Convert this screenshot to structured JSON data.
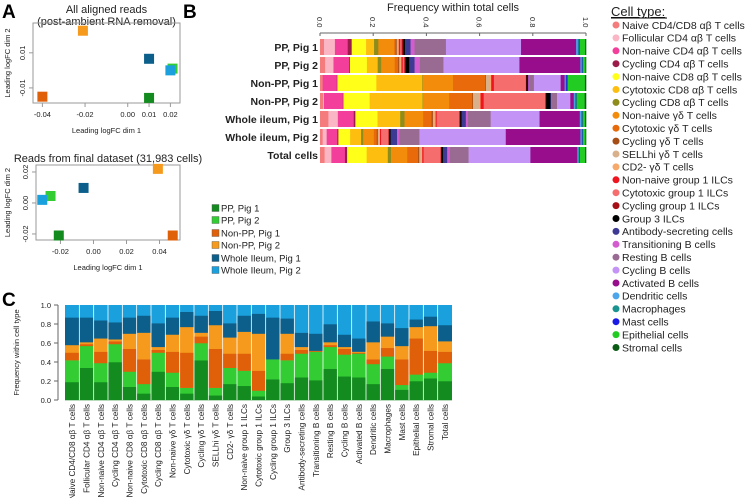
{
  "panel_labels": [
    "A",
    "B",
    "C"
  ],
  "samples": [
    {
      "name": "PP, Pig 1",
      "color": "#138b1e"
    },
    {
      "name": "PP, Pig 2",
      "color": "#33cc33"
    },
    {
      "name": "Non-PP, Pig 1",
      "color": "#e0600a"
    },
    {
      "name": "Non-PP, Pig 2",
      "color": "#f59a1d"
    },
    {
      "name": "Whole Ileum, Pig 1",
      "color": "#0b5f8a"
    },
    {
      "name": "Whole Ileum, Pig 2",
      "color": "#1aa0dc"
    }
  ],
  "cell_type_legend": {
    "title": "Cell type:",
    "items": [
      {
        "name": "Naive CD4/CD8 αβ T cells",
        "color": "#f47c7c"
      },
      {
        "name": "Follicular CD4 αβ T cells",
        "color": "#fbb6c5"
      },
      {
        "name": "Non-naive CD4 αβ T cells",
        "color": "#f33f9b"
      },
      {
        "name": "Cycling CD4 αβ T cells",
        "color": "#9b1b4a"
      },
      {
        "name": "Non-naive CD8 αβ T cells",
        "color": "#ffff1a"
      },
      {
        "name": "Cytotoxic CD8 αβ T cells",
        "color": "#fdbe10"
      },
      {
        "name": "Cycling CD8 αβ T cells",
        "color": "#8e8c1a"
      },
      {
        "name": "Non-naive γδ T cells",
        "color": "#f28c0a"
      },
      {
        "name": "Cytotoxic γδ T cells",
        "color": "#e86a0a"
      },
      {
        "name": "Cycling γδ T cells",
        "color": "#a64d16"
      },
      {
        "name": "SELLhi γδ T cells",
        "color": "#d9b08c"
      },
      {
        "name": "CD2- γδ T cells",
        "color": "#f6a96a"
      },
      {
        "name": "Non-naive group 1 ILCs",
        "color": "#f0141e"
      },
      {
        "name": "Cytotoxic group 1 ILCs",
        "color": "#f56d6d"
      },
      {
        "name": "Cycling group 1 ILCs",
        "color": "#a50f15"
      },
      {
        "name": "Group 3 ILCs",
        "color": "#000000"
      },
      {
        "name": "Antibody-secreting cells",
        "color": "#3d3a94"
      },
      {
        "name": "Transitioning B cells",
        "color": "#d35ccf"
      },
      {
        "name": "Resting B cells",
        "color": "#9a6b92"
      },
      {
        "name": "Cycling B cells",
        "color": "#c394f5"
      },
      {
        "name": "Activated B cells",
        "color": "#970d8b"
      },
      {
        "name": "Dendritic cells",
        "color": "#4ea6ea"
      },
      {
        "name": "Macrophages",
        "color": "#1a9490"
      },
      {
        "name": "Mast cells",
        "color": "#1a1ae6"
      },
      {
        "name": "Epithelial cells",
        "color": "#22cc22"
      },
      {
        "name": "Stromal cells",
        "color": "#0a5c14"
      }
    ]
  },
  "chart_data": [
    {
      "type": "scatter",
      "title": "All aligned reads\n(post-ambient RNA removal)",
      "xlabel": "Leading logFC dim 1",
      "ylabel": "Leading logFC dim 2",
      "xticks": [
        -0.04,
        -0.02,
        0.0,
        0.01,
        0.02
      ],
      "xtick_labels": [
        "-0.04",
        "-0.02",
        "0.00",
        "0.01",
        "0.02"
      ],
      "yticks": [
        0.01,
        -0.01
      ],
      "ytick_labels": [
        "0.01",
        "-0.01"
      ],
      "xlim": [
        -0.0444,
        0.0245
      ],
      "ylim": [
        -0.0186,
        0.027
      ],
      "points": [
        {
          "sample": "PP, Pig 1",
          "x": 0.01,
          "y": -0.0157
        },
        {
          "sample": "PP, Pig 2",
          "x": 0.021,
          "y": 0.001
        },
        {
          "sample": "Non-PP, Pig 1",
          "x": -0.04,
          "y": -0.015
        },
        {
          "sample": "Non-PP, Pig 2",
          "x": -0.021,
          "y": 0.0226
        },
        {
          "sample": "Whole Ileum, Pig 1",
          "x": 0.01,
          "y": 0.0066
        },
        {
          "sample": "Whole Ileum, Pig 2",
          "x": 0.02,
          "y": 0.0
        }
      ]
    },
    {
      "type": "scatter",
      "title": "Reads from final dataset (31,983 cells)",
      "xlabel": "Leading logFC dim 1",
      "ylabel": "Leading logFC dim 2",
      "xticks": [
        -0.02,
        0.0,
        0.02,
        0.04
      ],
      "xtick_labels": [
        "-0.02",
        "0.00",
        "0.02",
        "0.04"
      ],
      "yticks": [
        0.02,
        0.0,
        -0.02
      ],
      "ytick_labels": [
        "0.02",
        "0.00",
        "-0.02"
      ],
      "xlim": [
        -0.0348,
        0.0524
      ],
      "ylim": [
        -0.0239,
        0.0245
      ],
      "points": [
        {
          "sample": "PP, Pig 1",
          "x": -0.021,
          "y": -0.021
        },
        {
          "sample": "PP, Pig 2",
          "x": -0.026,
          "y": 0.0045
        },
        {
          "sample": "Non-PP, Pig 1",
          "x": 0.048,
          "y": -0.021
        },
        {
          "sample": "Non-PP, Pig 2",
          "x": 0.039,
          "y": 0.022
        },
        {
          "sample": "Whole Ileum, Pig 1",
          "x": -0.006,
          "y": 0.0097
        },
        {
          "sample": "Whole Ileum, Pig 2",
          "x": -0.031,
          "y": 0.002
        }
      ]
    },
    {
      "type": "bar",
      "orientation": "horizontal-stacked",
      "title": "Frequency within total cells",
      "xlim": [
        0,
        1
      ],
      "xticks": [
        0.0,
        0.2,
        0.4,
        0.6,
        0.8,
        1.0
      ],
      "xtick_labels": [
        "0.0",
        "0.2",
        "0.4",
        "0.6",
        "0.8",
        "1.0"
      ],
      "categories": [
        "PP, Pig 1",
        "PP, Pig 2",
        "Non-PP, Pig 1",
        "Non-PP, Pig 2",
        "Whole ileum, Pig 1",
        "Whole ileum, Pig 2",
        "Total cells"
      ],
      "stack_order": "cell_type_legend",
      "values": [
        [
          0.015,
          0.041,
          0.048,
          0.015,
          0.054,
          0.03,
          0.016,
          0.06,
          0.005,
          0.004,
          0.005,
          0.003,
          0.005,
          0.006,
          0.006,
          0.006,
          0.021,
          0.015,
          0.118,
          0.282,
          0.207,
          0.006,
          0.004,
          0.003,
          0.021,
          0.003
        ],
        [
          0.019,
          0.031,
          0.058,
          0.003,
          0.063,
          0.04,
          0.013,
          0.05,
          0.013,
          0.004,
          0.004,
          0.004,
          0.005,
          0.006,
          0.005,
          0.013,
          0.02,
          0.02,
          0.087,
          0.282,
          0.226,
          0.004,
          0.003,
          0.002,
          0.01,
          0.002
        ],
        [
          0.01,
          0.0,
          0.053,
          0.002,
          0.146,
          0.172,
          0.002,
          0.113,
          0.12,
          0.003,
          0.015,
          0.005,
          0.01,
          0.12,
          0.002,
          0.005,
          0.002,
          0.003,
          0.018,
          0.1,
          0.015,
          0.003,
          0.003,
          0.005,
          0.065,
          0.004
        ],
        [
          0.012,
          0.003,
          0.071,
          0.002,
          0.099,
          0.199,
          0.002,
          0.098,
          0.087,
          0.003,
          0.025,
          0.003,
          0.012,
          0.232,
          0.003,
          0.016,
          0.003,
          0.003,
          0.019,
          0.05,
          0.013,
          0.004,
          0.004,
          0.002,
          0.031,
          0.005
        ],
        [
          0.031,
          0.035,
          0.059,
          0.006,
          0.082,
          0.084,
          0.016,
          0.069,
          0.031,
          0.005,
          0.005,
          0.005,
          0.004,
          0.084,
          0.003,
          0.005,
          0.016,
          0.008,
          0.084,
          0.181,
          0.149,
          0.005,
          0.003,
          0.002,
          0.01,
          0.003
        ],
        [
          0.01,
          0.015,
          0.04,
          0.004,
          0.044,
          0.041,
          0.008,
          0.04,
          0.011,
          0.004,
          0.004,
          0.004,
          0.004,
          0.028,
          0.003,
          0.005,
          0.024,
          0.009,
          0.075,
          0.324,
          0.28,
          0.004,
          0.003,
          0.002,
          0.01,
          0.002
        ],
        [
          0.017,
          0.025,
          0.05,
          0.008,
          0.072,
          0.078,
          0.012,
          0.06,
          0.04,
          0.004,
          0.006,
          0.005,
          0.005,
          0.063,
          0.003,
          0.006,
          0.015,
          0.01,
          0.069,
          0.228,
          0.173,
          0.004,
          0.003,
          0.002,
          0.02,
          0.003
        ]
      ]
    },
    {
      "type": "bar",
      "orientation": "vertical-stacked",
      "ylabel": "Frequency within cell type",
      "ylim": [
        0,
        1
      ],
      "yticks": [
        0.0,
        0.2,
        0.4,
        0.6,
        0.8,
        1.0
      ],
      "ytick_labels": [
        "0.0",
        "0.2",
        "0.4",
        "0.6",
        "0.8",
        "1.0"
      ],
      "stack_order": "samples",
      "categories": [
        "Naive CD4/CD8 αβ T cells",
        "Follicular CD4 αβ T cells",
        "Non-naive CD4 αβ T cells",
        "Cycling CD4 αβ T cells",
        "Non-naive CD8 αβ T cells",
        "Cytotoxic CD8 αβ T cells",
        "Cycling CD8 αβ T cells",
        "Non-naive γδ T cells",
        "Cytotoxic γδ T cells",
        "Cycling γδ T cells",
        "SELLhi γδ T cells",
        "CD2- γδ T cells",
        "Non-naive group 1 ILCs",
        "Cytotoxic group 1 ILCs",
        "Cycling group 1 ILCs",
        "Group 3 ILCs",
        "Antibody-secreting cells",
        "Transitioning B cells",
        "Resting B cells",
        "Cycling B cells",
        "Activated B cells",
        "Dendritic cells",
        "Macrophages",
        "Mast cells",
        "Epithelial cells",
        "Stromal cells",
        "Total cells"
      ],
      "values": [
        [
          0.19,
          0.23,
          0.08,
          0.08,
          0.29,
          0.13
        ],
        [
          0.34,
          0.23,
          0.02,
          0.02,
          0.26,
          0.13
        ],
        [
          0.19,
          0.2,
          0.12,
          0.14,
          0.19,
          0.16
        ],
        [
          0.4,
          0.19,
          0.03,
          0.02,
          0.18,
          0.18
        ],
        [
          0.14,
          0.16,
          0.24,
          0.16,
          0.17,
          0.13
        ],
        [
          0.07,
          0.1,
          0.26,
          0.28,
          0.18,
          0.11
        ],
        [
          0.3,
          0.2,
          0.03,
          0.03,
          0.25,
          0.19
        ],
        [
          0.14,
          0.15,
          0.22,
          0.18,
          0.18,
          0.13
        ],
        [
          0.07,
          0.06,
          0.37,
          0.27,
          0.16,
          0.07
        ],
        [
          0.42,
          0.18,
          0.07,
          0.04,
          0.18,
          0.11
        ],
        [
          0.05,
          0.08,
          0.41,
          0.25,
          0.15,
          0.06
        ],
        [
          0.17,
          0.17,
          0.15,
          0.17,
          0.15,
          0.19
        ],
        [
          0.15,
          0.16,
          0.18,
          0.23,
          0.17,
          0.11
        ],
        [
          0.04,
          0.06,
          0.21,
          0.39,
          0.21,
          0.09
        ],
        [
          0.22,
          0.21,
          0.0,
          0.0,
          0.44,
          0.13
        ],
        [
          0.18,
          0.24,
          0.07,
          0.21,
          0.16,
          0.14
        ],
        [
          0.24,
          0.25,
          0.04,
          0.03,
          0.15,
          0.29
        ],
        [
          0.21,
          0.3,
          0.01,
          0.0,
          0.18,
          0.3
        ],
        [
          0.33,
          0.23,
          0.02,
          0.03,
          0.19,
          0.2
        ],
        [
          0.25,
          0.23,
          0.06,
          0.02,
          0.13,
          0.31
        ],
        [
          0.24,
          0.25,
          0.01,
          0.01,
          0.14,
          0.35
        ],
        [
          0.17,
          0.21,
          0.05,
          0.18,
          0.22,
          0.17
        ],
        [
          0.33,
          0.13,
          0.09,
          0.12,
          0.14,
          0.19
        ],
        [
          0.11,
          0.05,
          0.27,
          0.14,
          0.19,
          0.24
        ],
        [
          0.2,
          0.07,
          0.38,
          0.12,
          0.08,
          0.15
        ],
        [
          0.23,
          0.06,
          0.23,
          0.26,
          0.1,
          0.12
        ],
        [
          0.2,
          0.19,
          0.12,
          0.11,
          0.17,
          0.21
        ]
      ]
    }
  ]
}
